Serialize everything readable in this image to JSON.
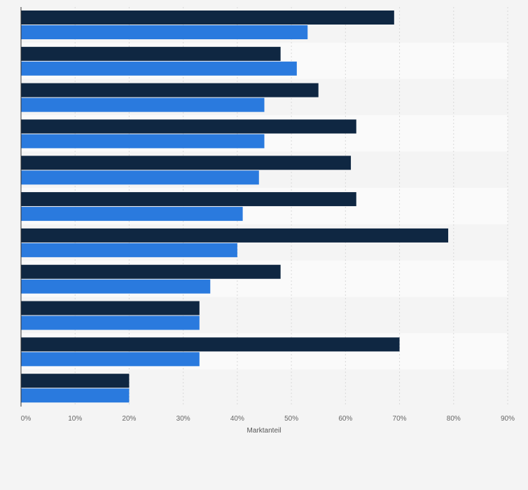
{
  "chart_data": {
    "type": "bar",
    "orientation": "horizontal",
    "title": "",
    "xlabel": "Marktanteil",
    "ylabel": "",
    "xlim": [
      0,
      90
    ],
    "x_ticks": [
      "0%",
      "10%",
      "20%",
      "30%",
      "40%",
      "50%",
      "60%",
      "70%",
      "80%",
      "90%"
    ],
    "grid": true,
    "categories": [
      "",
      "",
      "",
      "",
      "",
      "",
      "",
      "",
      "",
      "",
      ""
    ],
    "series": [
      {
        "color": "#0f2742",
        "values": [
          69,
          48,
          55,
          62,
          61,
          62,
          79,
          48,
          33,
          70,
          20
        ]
      },
      {
        "color": "#2a7ade",
        "values": [
          53,
          51,
          45,
          45,
          44,
          41,
          40,
          35,
          33,
          33,
          20
        ]
      }
    ]
  }
}
